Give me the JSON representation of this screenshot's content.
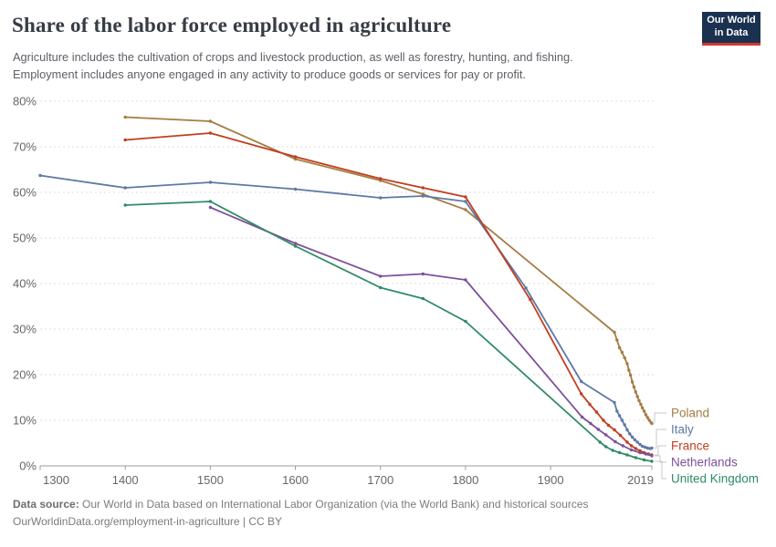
{
  "header": {
    "title": "Share of the labor force employed in agriculture",
    "subtitle_line1": "Agriculture includes the cultivation of crops and livestock production, as well as forestry, hunting, and fishing.",
    "subtitle_line2": "Employment includes anyone engaged in any activity to produce goods or services for pay or profit."
  },
  "logo": {
    "line1": "Our World",
    "line2": "in Data",
    "bg_color": "#1B3150",
    "stripe_color": "#D13830"
  },
  "chart_data": {
    "type": "line",
    "title": "Share of the labor force employed in agriculture",
    "xlabel": "",
    "ylabel": "",
    "xlim": [
      1300,
      2019
    ],
    "ylim": [
      0,
      80
    ],
    "x_ticks": [
      1300,
      1400,
      1500,
      1600,
      1700,
      1800,
      1900,
      2019
    ],
    "y_ticks": [
      0,
      10,
      20,
      30,
      40,
      50,
      60,
      70,
      80
    ],
    "y_tick_suffix": "%",
    "grid": "horizontal-dashed",
    "legend_position": "right-of-line-ends",
    "series": [
      {
        "name": "Poland",
        "color": "#A57C44",
        "points": [
          [
            1400,
            76.5
          ],
          [
            1500,
            75.6
          ],
          [
            1600,
            67.3
          ],
          [
            1700,
            62.6
          ],
          [
            1750,
            59.6
          ],
          [
            1800,
            56.2
          ],
          [
            1975,
            29.3
          ],
          [
            1978,
            27.6
          ],
          [
            1981,
            25.9
          ],
          [
            1984,
            24.9
          ],
          [
            1987,
            23.7
          ],
          [
            1990,
            22.4
          ],
          [
            1992,
            21.0
          ],
          [
            1994,
            19.9
          ],
          [
            1996,
            18.4
          ],
          [
            1998,
            17.3
          ],
          [
            2000,
            16.2
          ],
          [
            2002,
            15.2
          ],
          [
            2004,
            14.3
          ],
          [
            2006,
            13.5
          ],
          [
            2008,
            12.7
          ],
          [
            2010,
            12.0
          ],
          [
            2012,
            11.2
          ],
          [
            2014,
            10.6
          ],
          [
            2016,
            10.0
          ],
          [
            2018,
            9.5
          ],
          [
            2019,
            9.3
          ]
        ]
      },
      {
        "name": "Italy",
        "color": "#5E79A6",
        "points": [
          [
            1300,
            63.7
          ],
          [
            1400,
            61.0
          ],
          [
            1500,
            62.2
          ],
          [
            1600,
            60.7
          ],
          [
            1700,
            58.8
          ],
          [
            1750,
            59.2
          ],
          [
            1800,
            58.0
          ],
          [
            1871,
            39.0
          ],
          [
            1936,
            18.5
          ],
          [
            1975,
            13.9
          ],
          [
            1978,
            12.0
          ],
          [
            1981,
            11.0
          ],
          [
            1984,
            10.0
          ],
          [
            1987,
            9.0
          ],
          [
            1990,
            7.9
          ],
          [
            1993,
            7.0
          ],
          [
            1996,
            6.3
          ],
          [
            1999,
            5.7
          ],
          [
            2002,
            5.2
          ],
          [
            2005,
            4.7
          ],
          [
            2008,
            4.3
          ],
          [
            2011,
            4.1
          ],
          [
            2014,
            3.9
          ],
          [
            2017,
            3.8
          ],
          [
            2019,
            3.9
          ]
        ]
      },
      {
        "name": "France",
        "color": "#C03E20",
        "points": [
          [
            1400,
            71.5
          ],
          [
            1500,
            73.0
          ],
          [
            1600,
            67.8
          ],
          [
            1700,
            63.0
          ],
          [
            1750,
            61.0
          ],
          [
            1800,
            59.0
          ],
          [
            1876,
            36.5
          ],
          [
            1936,
            15.8
          ],
          [
            1946,
            13.5
          ],
          [
            1954,
            11.8
          ],
          [
            1962,
            10.0
          ],
          [
            1968,
            8.9
          ],
          [
            1975,
            7.9
          ],
          [
            1982,
            6.7
          ],
          [
            1990,
            5.2
          ],
          [
            1995,
            4.4
          ],
          [
            2000,
            3.8
          ],
          [
            2005,
            3.3
          ],
          [
            2010,
            2.9
          ],
          [
            2015,
            2.6
          ],
          [
            2019,
            2.4
          ]
        ]
      },
      {
        "name": "Netherlands",
        "color": "#7C519C",
        "points": [
          [
            1500,
            56.7
          ],
          [
            1600,
            48.8
          ],
          [
            1700,
            41.6
          ],
          [
            1750,
            42.1
          ],
          [
            1800,
            40.8
          ],
          [
            1937,
            10.7
          ],
          [
            1947,
            9.3
          ],
          [
            1956,
            8.0
          ],
          [
            1965,
            6.8
          ],
          [
            1976,
            5.3
          ],
          [
            1985,
            4.4
          ],
          [
            1995,
            3.5
          ],
          [
            2005,
            2.9
          ],
          [
            2012,
            2.6
          ],
          [
            2019,
            2.2
          ]
        ]
      },
      {
        "name": "United Kingdom",
        "color": "#318A68",
        "points": [
          [
            1400,
            57.2
          ],
          [
            1500,
            58.0
          ],
          [
            1600,
            48.2
          ],
          [
            1700,
            39.1
          ],
          [
            1750,
            36.7
          ],
          [
            1800,
            31.7
          ],
          [
            1958,
            5.2
          ],
          [
            1965,
            4.2
          ],
          [
            1973,
            3.4
          ],
          [
            1981,
            2.9
          ],
          [
            1990,
            2.4
          ],
          [
            2000,
            1.8
          ],
          [
            2010,
            1.3
          ],
          [
            2019,
            1.0
          ]
        ]
      }
    ]
  },
  "footer": {
    "source_label": "Data source:",
    "source_text": " Our World in Data based on International Labor Organization (via the World Bank) and historical sources",
    "attribution": "OurWorldinData.org/employment-in-agriculture | CC BY"
  }
}
